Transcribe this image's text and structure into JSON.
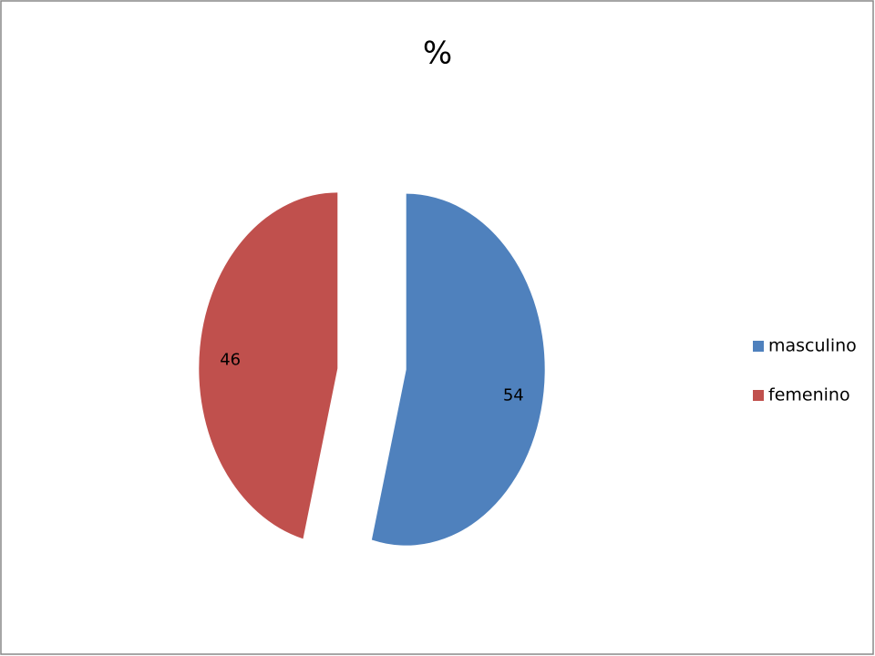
{
  "chart_data": {
    "type": "pie",
    "title": "%",
    "categories": [
      "masculino",
      "femenino"
    ],
    "values": [
      54,
      46
    ],
    "colors": [
      "#4f81bd",
      "#c0504d"
    ],
    "legend": "right"
  }
}
